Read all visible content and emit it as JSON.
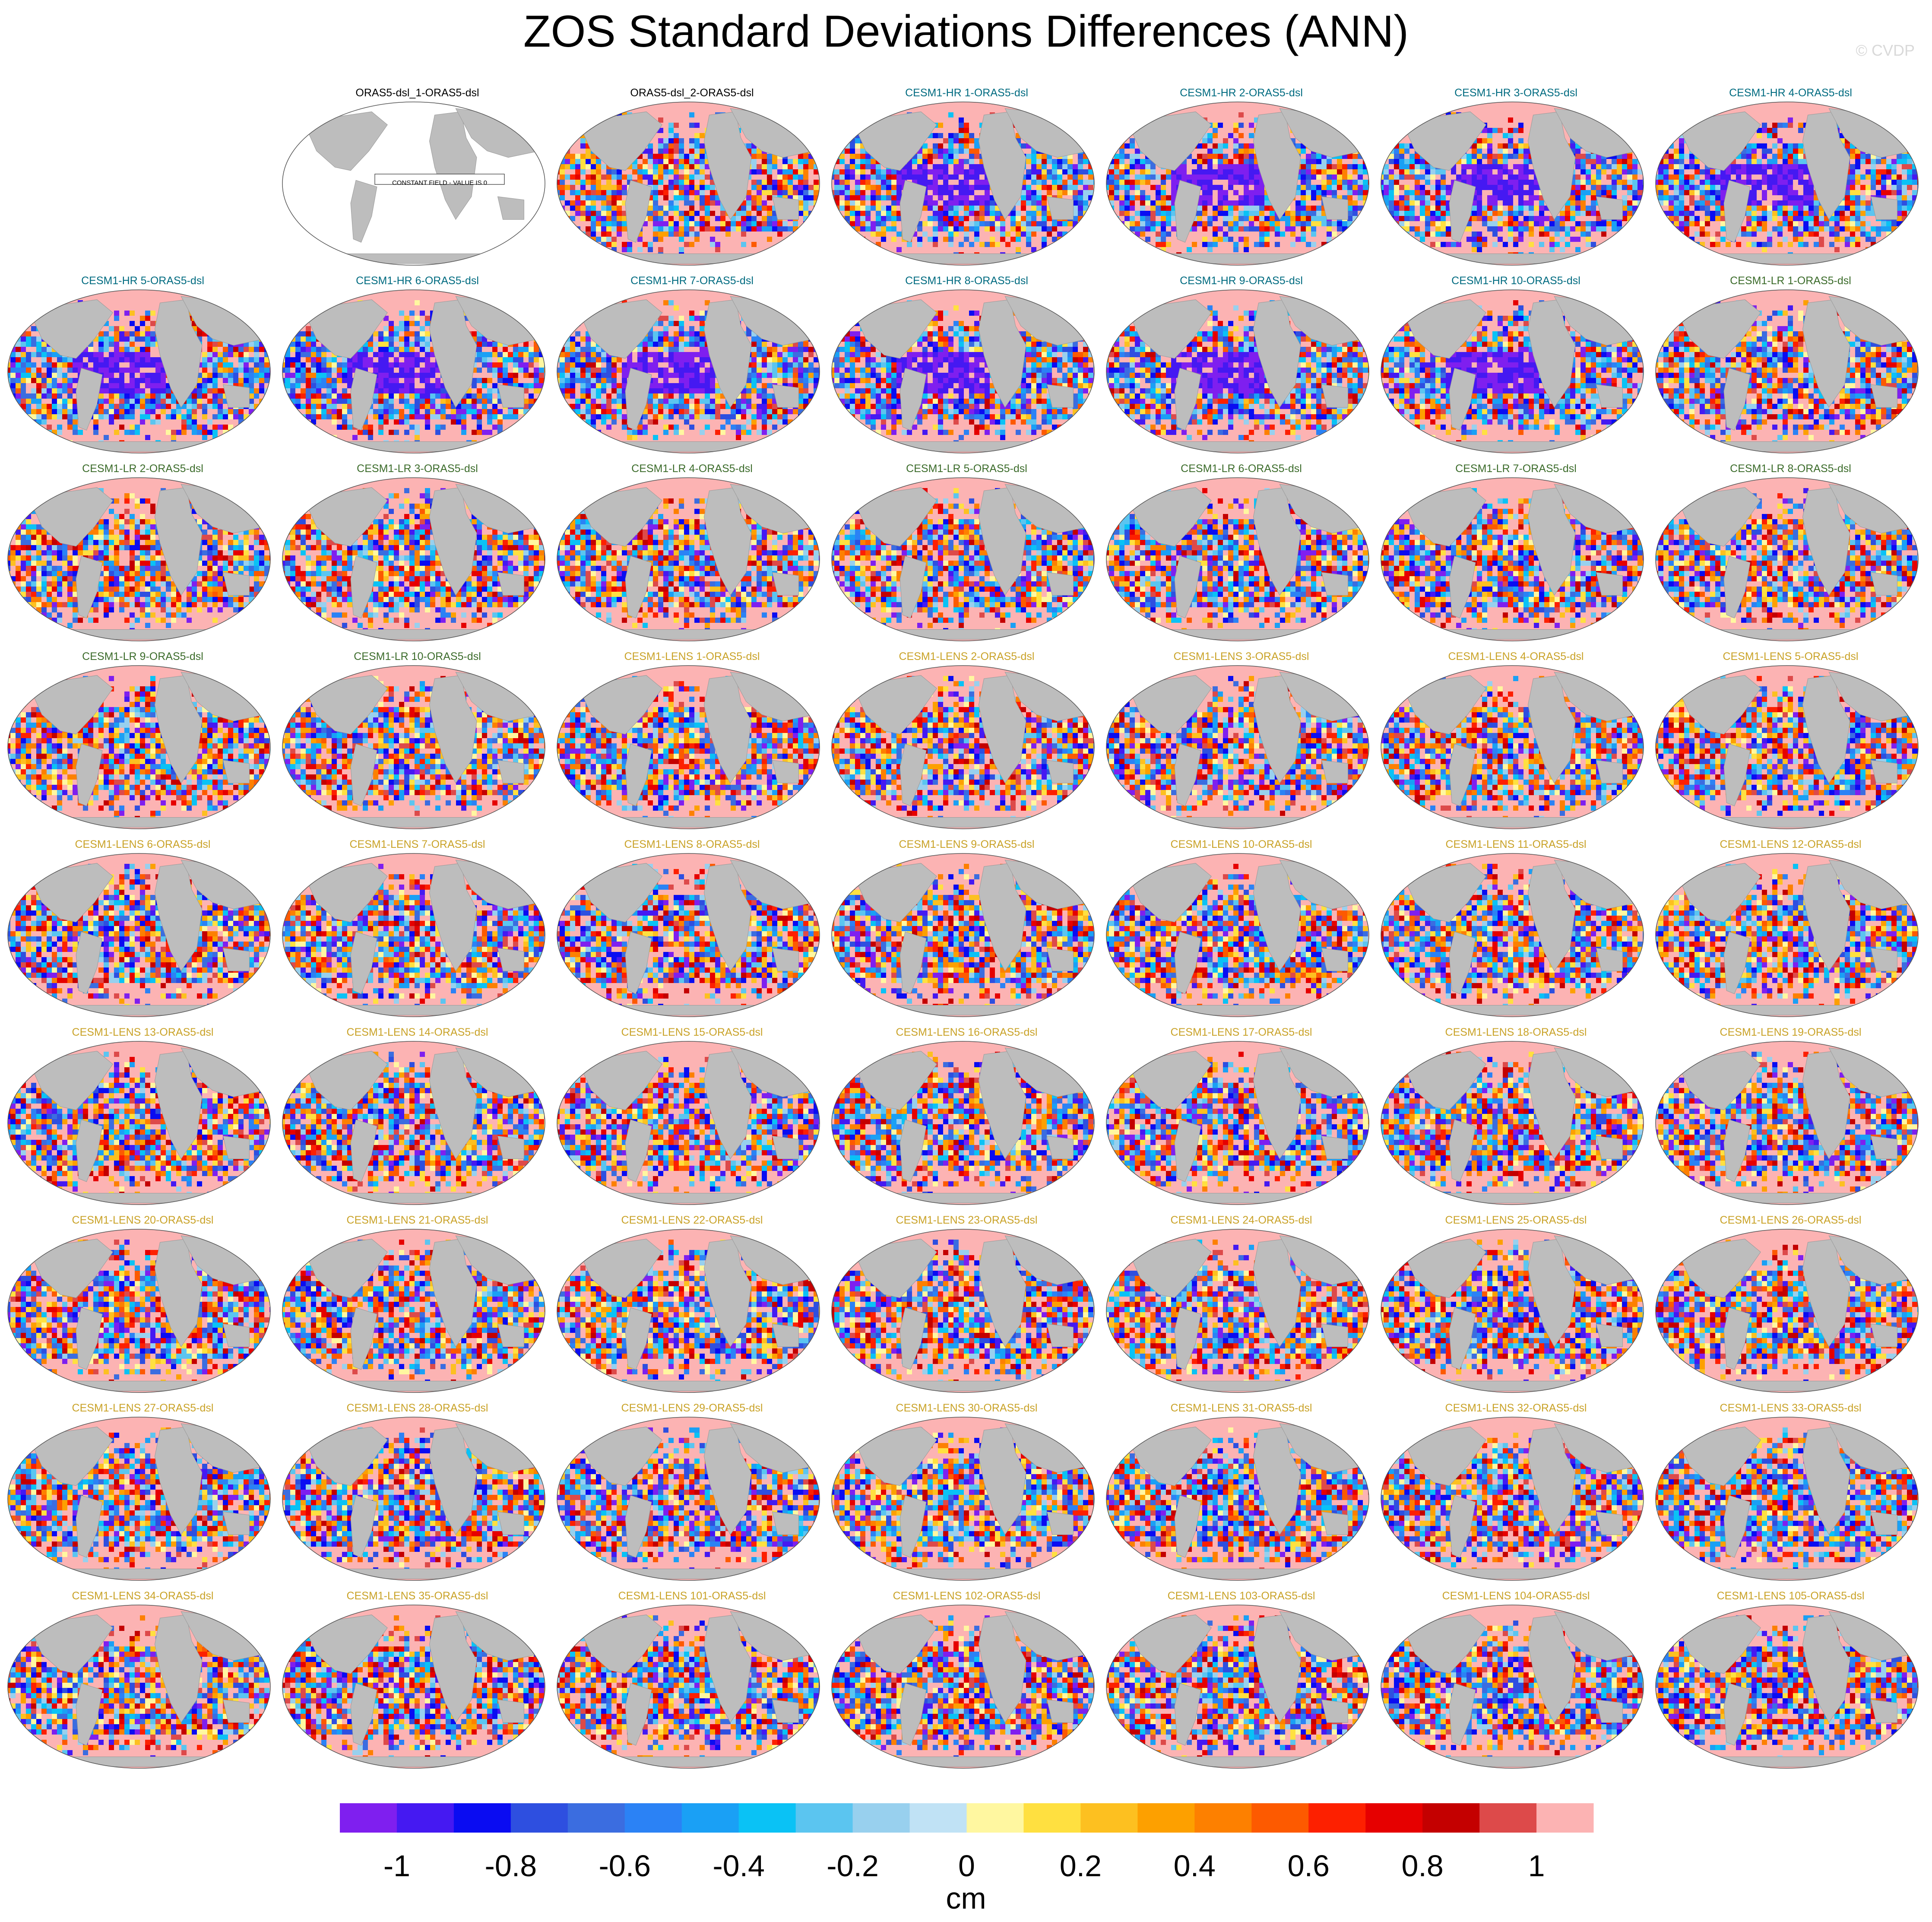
{
  "title": "ZOS Standard Deviations Differences (ANN)",
  "watermark": "© CVDP",
  "colors": {
    "observations": "#000000",
    "CESM1-HR": "#006b80",
    "CESM1-LR": "#3b6b2a",
    "CESM1-LENS": "#c9a227",
    "land": "#bdbdbd",
    "ocean_outline": "#555555"
  },
  "chart_data": {
    "type": "heatmap",
    "projection": "global ellipse maps",
    "units": "cm",
    "panels": [
      {
        "label": "",
        "group": "empty"
      },
      {
        "label": "ORAS5-dsl_1-ORAS5-dsl",
        "group": "observations",
        "note": "CONSTANT FIELD - VALUE IS 0"
      },
      {
        "label": "ORAS5-dsl_2-ORAS5-dsl",
        "group": "observations"
      },
      {
        "label": "CESM1-HR 1-ORAS5-dsl",
        "group": "CESM1-HR"
      },
      {
        "label": "CESM1-HR 2-ORAS5-dsl",
        "group": "CESM1-HR"
      },
      {
        "label": "CESM1-HR 3-ORAS5-dsl",
        "group": "CESM1-HR"
      },
      {
        "label": "CESM1-HR 4-ORAS5-dsl",
        "group": "CESM1-HR"
      },
      {
        "label": "CESM1-HR 5-ORAS5-dsl",
        "group": "CESM1-HR"
      },
      {
        "label": "CESM1-HR 6-ORAS5-dsl",
        "group": "CESM1-HR"
      },
      {
        "label": "CESM1-HR 7-ORAS5-dsl",
        "group": "CESM1-HR"
      },
      {
        "label": "CESM1-HR 8-ORAS5-dsl",
        "group": "CESM1-HR"
      },
      {
        "label": "CESM1-HR 9-ORAS5-dsl",
        "group": "CESM1-HR"
      },
      {
        "label": "CESM1-HR 10-ORAS5-dsl",
        "group": "CESM1-HR"
      },
      {
        "label": "CESM1-LR 1-ORAS5-dsl",
        "group": "CESM1-LR"
      },
      {
        "label": "CESM1-LR 2-ORAS5-dsl",
        "group": "CESM1-LR"
      },
      {
        "label": "CESM1-LR 3-ORAS5-dsl",
        "group": "CESM1-LR"
      },
      {
        "label": "CESM1-LR 4-ORAS5-dsl",
        "group": "CESM1-LR"
      },
      {
        "label": "CESM1-LR 5-ORAS5-dsl",
        "group": "CESM1-LR"
      },
      {
        "label": "CESM1-LR 6-ORAS5-dsl",
        "group": "CESM1-LR"
      },
      {
        "label": "CESM1-LR 7-ORAS5-dsl",
        "group": "CESM1-LR"
      },
      {
        "label": "CESM1-LR 8-ORAS5-dsl",
        "group": "CESM1-LR"
      },
      {
        "label": "CESM1-LR 9-ORAS5-dsl",
        "group": "CESM1-LR"
      },
      {
        "label": "CESM1-LR 10-ORAS5-dsl",
        "group": "CESM1-LR"
      },
      {
        "label": "CESM1-LENS 1-ORAS5-dsl",
        "group": "CESM1-LENS"
      },
      {
        "label": "CESM1-LENS 2-ORAS5-dsl",
        "group": "CESM1-LENS"
      },
      {
        "label": "CESM1-LENS 3-ORAS5-dsl",
        "group": "CESM1-LENS"
      },
      {
        "label": "CESM1-LENS 4-ORAS5-dsl",
        "group": "CESM1-LENS"
      },
      {
        "label": "CESM1-LENS 5-ORAS5-dsl",
        "group": "CESM1-LENS"
      },
      {
        "label": "CESM1-LENS 6-ORAS5-dsl",
        "group": "CESM1-LENS"
      },
      {
        "label": "CESM1-LENS 7-ORAS5-dsl",
        "group": "CESM1-LENS"
      },
      {
        "label": "CESM1-LENS 8-ORAS5-dsl",
        "group": "CESM1-LENS"
      },
      {
        "label": "CESM1-LENS 9-ORAS5-dsl",
        "group": "CESM1-LENS"
      },
      {
        "label": "CESM1-LENS 10-ORAS5-dsl",
        "group": "CESM1-LENS"
      },
      {
        "label": "CESM1-LENS 11-ORAS5-dsl",
        "group": "CESM1-LENS"
      },
      {
        "label": "CESM1-LENS 12-ORAS5-dsl",
        "group": "CESM1-LENS"
      },
      {
        "label": "CESM1-LENS 13-ORAS5-dsl",
        "group": "CESM1-LENS"
      },
      {
        "label": "CESM1-LENS 14-ORAS5-dsl",
        "group": "CESM1-LENS"
      },
      {
        "label": "CESM1-LENS 15-ORAS5-dsl",
        "group": "CESM1-LENS"
      },
      {
        "label": "CESM1-LENS 16-ORAS5-dsl",
        "group": "CESM1-LENS"
      },
      {
        "label": "CESM1-LENS 17-ORAS5-dsl",
        "group": "CESM1-LENS"
      },
      {
        "label": "CESM1-LENS 18-ORAS5-dsl",
        "group": "CESM1-LENS"
      },
      {
        "label": "CESM1-LENS 19-ORAS5-dsl",
        "group": "CESM1-LENS"
      },
      {
        "label": "CESM1-LENS 20-ORAS5-dsl",
        "group": "CESM1-LENS"
      },
      {
        "label": "CESM1-LENS 21-ORAS5-dsl",
        "group": "CESM1-LENS"
      },
      {
        "label": "CESM1-LENS 22-ORAS5-dsl",
        "group": "CESM1-LENS"
      },
      {
        "label": "CESM1-LENS 23-ORAS5-dsl",
        "group": "CESM1-LENS"
      },
      {
        "label": "CESM1-LENS 24-ORAS5-dsl",
        "group": "CESM1-LENS"
      },
      {
        "label": "CESM1-LENS 25-ORAS5-dsl",
        "group": "CESM1-LENS"
      },
      {
        "label": "CESM1-LENS 26-ORAS5-dsl",
        "group": "CESM1-LENS"
      },
      {
        "label": "CESM1-LENS 27-ORAS5-dsl",
        "group": "CESM1-LENS"
      },
      {
        "label": "CESM1-LENS 28-ORAS5-dsl",
        "group": "CESM1-LENS"
      },
      {
        "label": "CESM1-LENS 29-ORAS5-dsl",
        "group": "CESM1-LENS"
      },
      {
        "label": "CESM1-LENS 30-ORAS5-dsl",
        "group": "CESM1-LENS"
      },
      {
        "label": "CESM1-LENS 31-ORAS5-dsl",
        "group": "CESM1-LENS"
      },
      {
        "label": "CESM1-LENS 32-ORAS5-dsl",
        "group": "CESM1-LENS"
      },
      {
        "label": "CESM1-LENS 33-ORAS5-dsl",
        "group": "CESM1-LENS"
      },
      {
        "label": "CESM1-LENS 34-ORAS5-dsl",
        "group": "CESM1-LENS"
      },
      {
        "label": "CESM1-LENS 35-ORAS5-dsl",
        "group": "CESM1-LENS"
      },
      {
        "label": "CESM1-LENS 101-ORAS5-dsl",
        "group": "CESM1-LENS"
      },
      {
        "label": "CESM1-LENS 102-ORAS5-dsl",
        "group": "CESM1-LENS"
      },
      {
        "label": "CESM1-LENS 103-ORAS5-dsl",
        "group": "CESM1-LENS"
      },
      {
        "label": "CESM1-LENS 104-ORAS5-dsl",
        "group": "CESM1-LENS"
      },
      {
        "label": "CESM1-LENS 105-ORAS5-dsl",
        "group": "CESM1-LENS"
      }
    ],
    "colorbar": {
      "label": "cm",
      "range": [
        -1.1,
        1.1
      ],
      "tick_labels": [
        "-1",
        "-0.8",
        "-0.6",
        "-0.4",
        "-0.2",
        "0",
        "0.2",
        "0.4",
        "0.6",
        "0.8",
        "1"
      ],
      "tick_values": [
        -1,
        -0.8,
        -0.6,
        -0.4,
        -0.2,
        0,
        0.2,
        0.4,
        0.6,
        0.8,
        1
      ],
      "colors": [
        "#7f1fef",
        "#4519f2",
        "#0a0cf2",
        "#2e4fe0",
        "#3b6de0",
        "#2b82f5",
        "#1aa0f5",
        "#0ac2f5",
        "#5bc5f0",
        "#98d0ee",
        "#c0e2f5",
        "#fff7a0",
        "#ffe040",
        "#fdc020",
        "#fda000",
        "#fd8000",
        "#fd5a00",
        "#fd2000",
        "#e60000",
        "#c40000",
        "#dd4a4a",
        "#fcb3b3"
      ]
    }
  }
}
